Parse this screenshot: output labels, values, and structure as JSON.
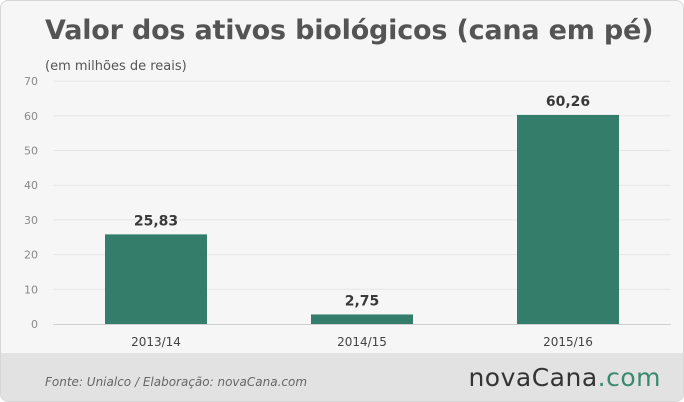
{
  "title": "Valor dos ativos biológicos (cana em pé)",
  "subtitle": "(em milhões de reais)",
  "source": "Fonte:  Unialco  / Elaboração:  novaCana.com",
  "logo": {
    "part1": "nova",
    "part2": "Cana",
    "part3": ".com"
  },
  "colors": {
    "bar": "#347d6b",
    "background": "#f6f6f6",
    "footer": "#e2e2e2",
    "accent": "#3a8a6e"
  },
  "chart_data": {
    "type": "bar",
    "title": "Valor dos ativos biológicos (cana em pé)",
    "subtitle": "(em milhões de reais)",
    "categories": [
      "2013/14",
      "2014/15",
      "2015/16"
    ],
    "values": [
      25.83,
      2.75,
      60.26
    ],
    "value_labels": [
      "25,83",
      "2,75",
      "60,26"
    ],
    "yticks": [
      0,
      10,
      20,
      30,
      40,
      50,
      60,
      70
    ],
    "ylim": [
      0,
      70
    ],
    "grid": true,
    "xlabel": "",
    "ylabel": ""
  }
}
